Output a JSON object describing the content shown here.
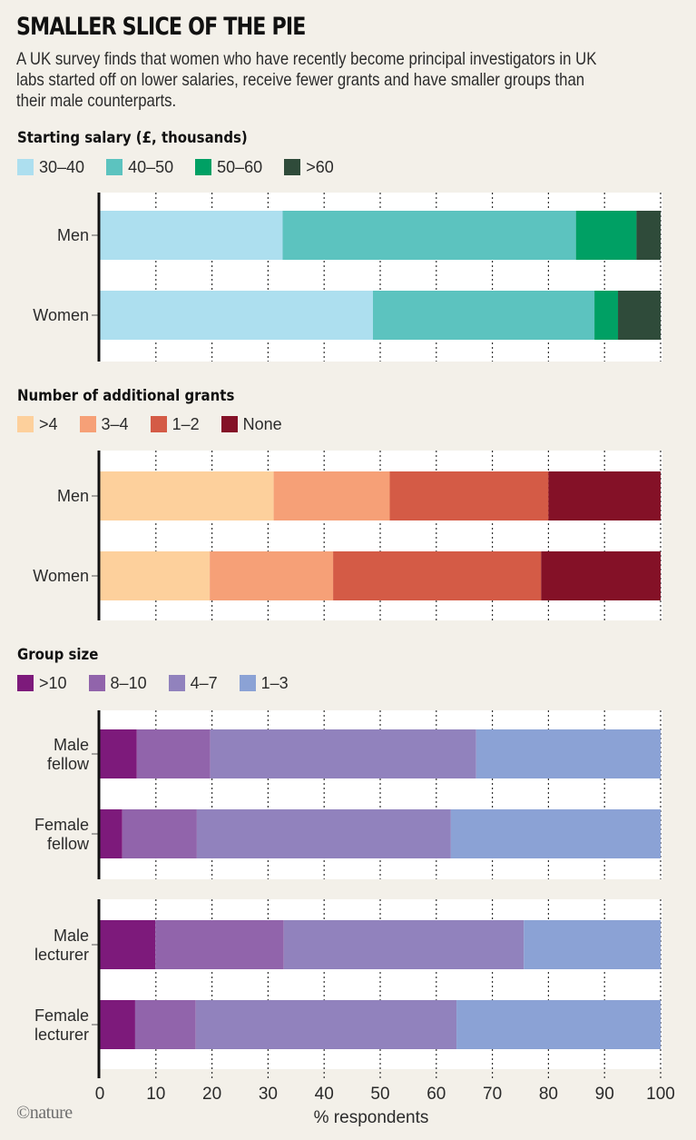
{
  "header": {
    "title": "SMALLER SLICE OF THE PIE",
    "subtitle": "A UK survey finds that women who have recently become principal investigators in UK labs started off on lower salaries, receive fewer grants and have smaller groups than their male counterparts."
  },
  "credit": "©nature",
  "chart_data": [
    {
      "type": "bar",
      "orientation": "horizontal",
      "stacked": true,
      "title": "Starting salary (£, thousands)",
      "categories": [
        "Men",
        "Women"
      ],
      "series": [
        {
          "name": "30–40",
          "color": "#addfef",
          "values": [
            32.6,
            48.7
          ]
        },
        {
          "name": "40–50",
          "color": "#5cc3bf",
          "values": [
            52.3,
            39.5
          ]
        },
        {
          "name": "50–60",
          "color": "#00a064",
          "values": [
            10.8,
            4.2
          ]
        },
        {
          "name": ">60",
          "color": "#2f4b3a",
          "values": [
            4.3,
            7.6
          ]
        }
      ],
      "xlim": [
        0,
        100
      ],
      "grid": true,
      "legend": "top-left"
    },
    {
      "type": "bar",
      "orientation": "horizontal",
      "stacked": true,
      "title": "Number of additional grants",
      "categories": [
        "Men",
        "Women"
      ],
      "series": [
        {
          "name": ">4",
          "color": "#fdd09c",
          "values": [
            31.0,
            19.6
          ]
        },
        {
          "name": "3–4",
          "color": "#f6a077",
          "values": [
            20.7,
            22.0
          ]
        },
        {
          "name": "1–2",
          "color": "#d45b46",
          "values": [
            28.3,
            37.1
          ]
        },
        {
          "name": "None",
          "color": "#841127",
          "values": [
            20.0,
            21.3
          ]
        }
      ],
      "xlim": [
        0,
        100
      ],
      "grid": true,
      "legend": "top-left"
    },
    {
      "type": "bar",
      "orientation": "horizontal",
      "stacked": true,
      "title": "Group size",
      "categories": [
        "Male fellow",
        "Female fellow",
        "Male lecturer",
        "Female lecturer"
      ],
      "series": [
        {
          "name": ">10",
          "color": "#7d1a7b",
          "values": [
            6.6,
            4.0,
            9.9,
            6.3
          ]
        },
        {
          "name": "8–10",
          "color": "#9164ab",
          "values": [
            13.1,
            13.3,
            22.9,
            10.8
          ]
        },
        {
          "name": "4–7",
          "color": "#9182bd",
          "values": [
            47.4,
            45.3,
            42.8,
            46.5
          ]
        },
        {
          "name": "1–3",
          "color": "#8ba2d5",
          "values": [
            32.9,
            37.4,
            24.4,
            36.4
          ]
        }
      ],
      "xlim": [
        0,
        100
      ],
      "xticks": [
        0,
        10,
        20,
        30,
        40,
        50,
        60,
        70,
        80,
        90,
        100
      ],
      "xlabel": "% respondents",
      "grid": true,
      "legend": "top-left"
    }
  ]
}
